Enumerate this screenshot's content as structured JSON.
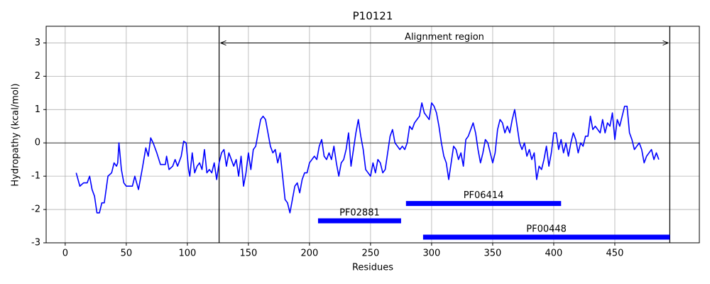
{
  "chart_data": {
    "type": "line",
    "title": "P10121",
    "xlabel": "Residues",
    "ylabel": "Hydropathy (kcal/mol)",
    "color": "#0000ff",
    "grid": true,
    "xlim": [
      -15.6,
      519.2
    ],
    "ylim": [
      -3,
      3.5
    ],
    "xticks": [
      0,
      50,
      100,
      150,
      200,
      250,
      300,
      350,
      400,
      450
    ],
    "yticks": [
      -3,
      -2,
      -1,
      0,
      1,
      2,
      3
    ],
    "hline": 0,
    "x": [
      9,
      12,
      15,
      18,
      20,
      22,
      24,
      26,
      28,
      30,
      32,
      35,
      38,
      40,
      42,
      43,
      44,
      46,
      48,
      50,
      52,
      55,
      57,
      60,
      63,
      66,
      68,
      70,
      72,
      75,
      78,
      82,
      83,
      85,
      88,
      90,
      92,
      95,
      97,
      99,
      101,
      102,
      104,
      106,
      108,
      110,
      112,
      114,
      116,
      118,
      120,
      122,
      124,
      126,
      128,
      130,
      132,
      134,
      136,
      138,
      140,
      142,
      144,
      146,
      148,
      150,
      152,
      154,
      156,
      158,
      160,
      162,
      164,
      166,
      168,
      170,
      172,
      174,
      176,
      178,
      180,
      182,
      184,
      186,
      188,
      190,
      192,
      194,
      196,
      198,
      200,
      202,
      204,
      206,
      208,
      210,
      212,
      214,
      216,
      218,
      220,
      222,
      224,
      226,
      228,
      230,
      232,
      234,
      236,
      238,
      240,
      242,
      244,
      246,
      248,
      250,
      252,
      254,
      256,
      258,
      260,
      262,
      264,
      266,
      268,
      270,
      272,
      274,
      276,
      278,
      280,
      282,
      284,
      286,
      288,
      290,
      292,
      294,
      296,
      298,
      300,
      302,
      304,
      306,
      308,
      310,
      312,
      314,
      316,
      318,
      320,
      322,
      324,
      326,
      328,
      330,
      332,
      334,
      336,
      338,
      340,
      342,
      344,
      346,
      348,
      350,
      352,
      354,
      356,
      358,
      360,
      362,
      364,
      366,
      368,
      370,
      372,
      374,
      376,
      378,
      380,
      382,
      384,
      386,
      388,
      390,
      392,
      394,
      396,
      398,
      400,
      402,
      404,
      406,
      408,
      410,
      412,
      414,
      416,
      418,
      420,
      422,
      424,
      426,
      428,
      430,
      432,
      434,
      436,
      438,
      440,
      442,
      444,
      446,
      448,
      450,
      452,
      454,
      456,
      458,
      460,
      462,
      464,
      466,
      468,
      470,
      472,
      474,
      476,
      478,
      480,
      482,
      484,
      486
    ],
    "values": [
      -0.9,
      -1.3,
      -1.2,
      -1.2,
      -1.0,
      -1.4,
      -1.6,
      -2.1,
      -2.1,
      -1.8,
      -1.8,
      -1.0,
      -0.9,
      -0.6,
      -0.7,
      -0.6,
      0.0,
      -0.8,
      -1.2,
      -1.3,
      -1.3,
      -1.3,
      -1.0,
      -1.4,
      -0.8,
      -0.15,
      -0.4,
      0.15,
      0.0,
      -0.3,
      -0.65,
      -0.65,
      -0.4,
      -0.8,
      -0.7,
      -0.5,
      -0.7,
      -0.4,
      0.05,
      0.0,
      -0.8,
      -1.0,
      -0.3,
      -0.9,
      -0.7,
      -0.6,
      -0.8,
      -0.2,
      -0.9,
      -0.8,
      -0.9,
      -0.6,
      -1.1,
      -0.6,
      -0.3,
      -0.2,
      -0.7,
      -0.3,
      -0.5,
      -0.7,
      -0.5,
      -1.0,
      -0.4,
      -1.3,
      -0.9,
      -0.3,
      -0.8,
      -0.2,
      -0.1,
      0.3,
      0.7,
      0.8,
      0.7,
      0.3,
      -0.1,
      -0.3,
      -0.2,
      -0.6,
      -0.3,
      -1.0,
      -1.7,
      -1.8,
      -2.1,
      -1.7,
      -1.3,
      -1.2,
      -1.5,
      -1.1,
      -0.9,
      -0.9,
      -0.6,
      -0.5,
      -0.4,
      -0.5,
      -0.1,
      0.1,
      -0.4,
      -0.5,
      -0.3,
      -0.5,
      -0.1,
      -0.6,
      -1.0,
      -0.6,
      -0.5,
      -0.2,
      0.3,
      -0.7,
      -0.2,
      0.3,
      0.7,
      0.2,
      -0.2,
      -0.8,
      -0.9,
      -1.0,
      -0.6,
      -0.9,
      -0.5,
      -0.6,
      -0.9,
      -0.8,
      -0.3,
      0.2,
      0.4,
      0.0,
      -0.1,
      -0.2,
      -0.1,
      -0.2,
      0.0,
      0.5,
      0.4,
      0.6,
      0.7,
      0.8,
      1.2,
      0.9,
      0.8,
      0.7,
      1.2,
      1.1,
      0.9,
      0.5,
      0.0,
      -0.4,
      -0.6,
      -1.1,
      -0.6,
      -0.1,
      -0.2,
      -0.5,
      -0.3,
      -0.7,
      0.1,
      0.2,
      0.4,
      0.6,
      0.3,
      -0.2,
      -0.6,
      -0.3,
      0.1,
      0.0,
      -0.3,
      -0.6,
      -0.3,
      0.4,
      0.7,
      0.6,
      0.3,
      0.5,
      0.3,
      0.7,
      1.0,
      0.5,
      0.0,
      -0.2,
      0.0,
      -0.4,
      -0.2,
      -0.5,
      -0.3,
      -1.1,
      -0.7,
      -0.8,
      -0.5,
      -0.1,
      -0.7,
      -0.3,
      0.3,
      0.3,
      -0.2,
      0.1,
      -0.3,
      0.0,
      -0.4,
      0.0,
      0.3,
      0.1,
      -0.3,
      0.0,
      -0.1,
      0.2,
      0.2,
      0.8,
      0.4,
      0.5,
      0.4,
      0.3,
      0.7,
      0.3,
      0.6,
      0.5,
      0.9,
      0.1,
      0.7,
      0.5,
      0.8,
      1.1,
      1.1,
      0.3,
      0.1,
      -0.2,
      -0.1,
      0.0,
      -0.2,
      -0.6,
      -0.4,
      -0.3,
      -0.2,
      -0.5,
      -0.3,
      -0.5
    ],
    "region": {
      "label": "Alignment region",
      "start": 126,
      "end": 495,
      "y": 3
    },
    "domains": [
      {
        "label": "PF06414",
        "start": 279,
        "end": 406,
        "y": -1.82
      },
      {
        "label": "PF02881",
        "start": 207,
        "end": 275,
        "y": -2.34
      },
      {
        "label": "PF00448",
        "start": 293,
        "end": 495,
        "y": -2.83
      }
    ]
  }
}
